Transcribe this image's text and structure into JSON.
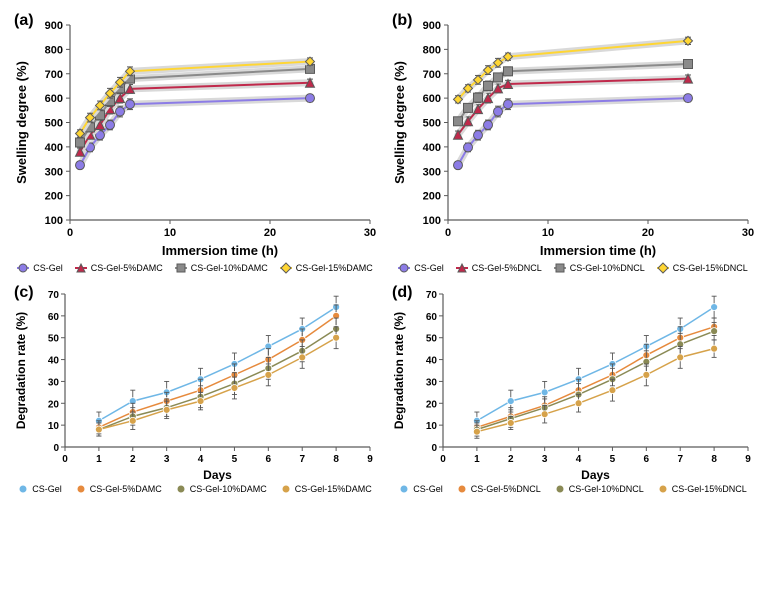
{
  "colors": {
    "cs_gel": "#8c7ce6",
    "series2": "#c0294b",
    "series3": "#8a8a8a",
    "series4": "#ffd633",
    "marker_border": "#5a5a5a",
    "line_glow": "#d9d9d9",
    "text": "#000000",
    "axis": "#5a5a5a",
    "deg_cs_gel": "#6fb7e6",
    "deg_s2": "#e68a3d",
    "deg_s3": "#8a8a55",
    "deg_s4": "#d6a24a",
    "error_bar": "#555555"
  },
  "panel_labels": {
    "a": "(a)",
    "b": "(b)",
    "c": "(c)",
    "d": "(d)"
  },
  "swelling_axis": {
    "xlabel": "Immersion time (h)",
    "ylabel": "Swelling degree (%)",
    "xlim": [
      0,
      30
    ],
    "ylim": [
      100,
      900
    ],
    "xticks": [
      0,
      10,
      20,
      30
    ],
    "yticks": [
      100,
      200,
      300,
      400,
      500,
      600,
      700,
      800,
      900
    ],
    "label_fontsize": 13,
    "tick_fontsize": 11,
    "label_weight": "bold"
  },
  "degradation_axis": {
    "xlabel": "Days",
    "ylabel": "Degradation rate (%)",
    "xlim": [
      0,
      9
    ],
    "ylim": [
      0,
      70
    ],
    "xticks": [
      0,
      1,
      2,
      3,
      4,
      5,
      6,
      7,
      8,
      9
    ],
    "yticks": [
      0,
      10,
      20,
      30,
      40,
      50,
      60,
      70
    ],
    "label_fontsize": 12,
    "tick_fontsize": 10,
    "label_weight": "bold"
  },
  "chart_a": {
    "type": "line-scatter",
    "x": [
      1,
      2,
      3,
      4,
      5,
      6,
      24
    ],
    "series": [
      {
        "name": "CS-Gel",
        "color_key": "cs_gel",
        "marker": "circle",
        "y": [
          325,
          398,
          448,
          490,
          545,
          575,
          600
        ],
        "err": [
          15,
          18,
          20,
          20,
          22,
          22,
          15
        ]
      },
      {
        "name": "CS-Gel-5%DAMC",
        "color_key": "series2",
        "marker": "triangle",
        "y": [
          380,
          450,
          490,
          555,
          600,
          638,
          663
        ],
        "err": [
          15,
          15,
          18,
          20,
          20,
          18,
          15
        ]
      },
      {
        "name": "CS-Gel-10%DAMC",
        "color_key": "series3",
        "marker": "square",
        "y": [
          418,
          480,
          530,
          588,
          640,
          680,
          720
        ],
        "err": [
          15,
          18,
          20,
          22,
          22,
          18,
          15
        ]
      },
      {
        "name": "CS-Gel-15%DAMC",
        "color_key": "series4",
        "marker": "diamond",
        "y": [
          455,
          520,
          570,
          620,
          665,
          710,
          750
        ],
        "err": [
          15,
          18,
          18,
          20,
          20,
          18,
          15
        ]
      }
    ]
  },
  "chart_b": {
    "type": "line-scatter",
    "x": [
      1,
      2,
      3,
      4,
      5,
      6,
      24
    ],
    "series": [
      {
        "name": "CS-Gel",
        "color_key": "cs_gel",
        "marker": "circle",
        "y": [
          325,
          398,
          448,
          490,
          545,
          575,
          600
        ],
        "err": [
          15,
          18,
          20,
          20,
          22,
          22,
          15
        ]
      },
      {
        "name": "CS-Gel-5%DNCL",
        "color_key": "series2",
        "marker": "triangle",
        "y": [
          450,
          505,
          555,
          600,
          640,
          658,
          680
        ],
        "err": [
          15,
          18,
          18,
          20,
          18,
          15,
          15
        ]
      },
      {
        "name": "CS-Gel-10%DNCL",
        "color_key": "series3",
        "marker": "square",
        "y": [
          505,
          560,
          602,
          650,
          685,
          710,
          740
        ],
        "err": [
          15,
          18,
          20,
          20,
          18,
          18,
          15
        ]
      },
      {
        "name": "CS-Gel-15%DNCL",
        "color_key": "series4",
        "marker": "diamond",
        "y": [
          595,
          640,
          675,
          715,
          745,
          770,
          835
        ],
        "err": [
          15,
          15,
          18,
          18,
          18,
          15,
          15
        ]
      }
    ]
  },
  "chart_c": {
    "type": "line-scatter",
    "x": [
      1,
      2,
      3,
      4,
      5,
      6,
      7,
      8
    ],
    "series": [
      {
        "name": "CS-Gel",
        "color_key": "deg_cs_gel",
        "marker": "circle",
        "y": [
          12,
          21,
          25,
          31,
          38,
          46,
          54,
          64
        ],
        "err": [
          4,
          5,
          5,
          5,
          5,
          5,
          5,
          5
        ]
      },
      {
        "name": "CS-Gel-5%DAMC",
        "color_key": "deg_s2",
        "marker": "circle",
        "y": [
          9,
          16,
          21,
          26,
          33,
          40,
          49,
          60
        ],
        "err": [
          3,
          4,
          4,
          5,
          5,
          5,
          5,
          5
        ]
      },
      {
        "name": "CS-Gel-10%DAMC",
        "color_key": "deg_s3",
        "marker": "circle",
        "y": [
          8,
          14,
          18,
          23,
          29,
          36,
          44,
          54
        ],
        "err": [
          3,
          4,
          4,
          5,
          5,
          5,
          5,
          5
        ]
      },
      {
        "name": "CS-Gel-15%DAMC",
        "color_key": "deg_s4",
        "marker": "circle",
        "y": [
          8,
          12,
          17,
          21,
          27,
          33,
          41,
          50
        ],
        "err": [
          3,
          4,
          4,
          4,
          5,
          5,
          5,
          5
        ]
      }
    ]
  },
  "chart_d": {
    "type": "line-scatter",
    "x": [
      1,
      2,
      3,
      4,
      5,
      6,
      7,
      8
    ],
    "series": [
      {
        "name": "CS-Gel",
        "color_key": "deg_cs_gel",
        "marker": "circle",
        "y": [
          12,
          21,
          25,
          31,
          38,
          46,
          54,
          64
        ],
        "err": [
          4,
          5,
          5,
          5,
          5,
          5,
          5,
          5
        ]
      },
      {
        "name": "CS-Gel-5%DNCL",
        "color_key": "deg_s2",
        "marker": "circle",
        "y": [
          9,
          14,
          19,
          26,
          33,
          42,
          50,
          55
        ],
        "err": [
          3,
          4,
          4,
          5,
          5,
          5,
          5,
          4
        ]
      },
      {
        "name": "CS-Gel-10%DNCL",
        "color_key": "deg_s3",
        "marker": "circle",
        "y": [
          8,
          13,
          18,
          24,
          31,
          39,
          47,
          53
        ],
        "err": [
          3,
          4,
          4,
          5,
          5,
          5,
          5,
          4
        ]
      },
      {
        "name": "CS-Gel-15%DNCL",
        "color_key": "deg_s4",
        "marker": "circle",
        "y": [
          7,
          11,
          15,
          20,
          26,
          33,
          41,
          45
        ],
        "err": [
          3,
          3,
          4,
          4,
          5,
          5,
          5,
          4
        ]
      }
    ]
  },
  "legend_a": [
    "CS-Gel",
    "CS-Gel-5%DAMC",
    "CS-Gel-10%DAMC",
    "CS-Gel-15%DAMC"
  ],
  "legend_b": [
    "CS-Gel",
    "CS-Gel-5%DNCL",
    "CS-Gel-10%DNCL",
    "CS-Gel-15%DNCL"
  ],
  "legend_c": [
    "CS-Gel",
    "CS-Gel-5%DAMC",
    "CS-Gel-10%DAMC",
    "CS-Gel-15%DAMC"
  ],
  "legend_d": [
    "CS-Gel",
    "CS-Gel-5%DNCL",
    "CS-Gel-10%DNCL",
    "CS-Gel-15%DNCL"
  ]
}
